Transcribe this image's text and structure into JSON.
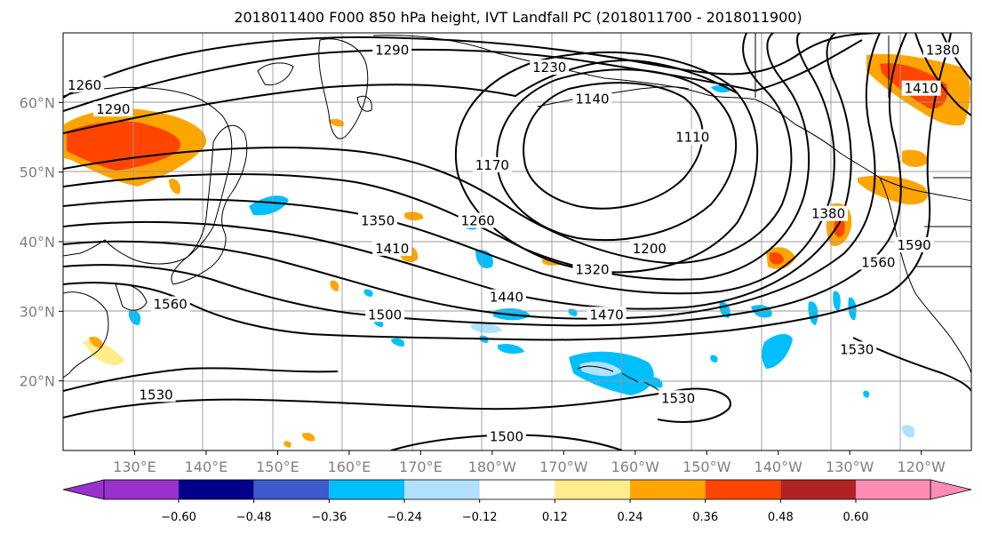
{
  "title": "2018011400 F000 850 hPa height, IVT Landfall PC (2018011700 - 2018011900)",
  "map": {
    "lon_range": [
      120,
      247
    ],
    "lat_range": [
      10,
      70
    ],
    "lon_ticks": [
      "130°E",
      "140°E",
      "150°E",
      "160°E",
      "170°E",
      "180°W",
      "170°W",
      "160°W",
      "150°W",
      "140°W",
      "130°W",
      "120°W"
    ],
    "lat_ticks": [
      "60°N",
      "50°N",
      "40°N",
      "30°N",
      "20°N"
    ],
    "grid": true
  },
  "contour_labels": [
    {
      "text": "1290",
      "lon": 166,
      "lat": 67.5
    },
    {
      "text": "1260",
      "lon": 123,
      "lat": 62.5
    },
    {
      "text": "1290",
      "lon": 127,
      "lat": 59
    },
    {
      "text": "1230",
      "lon": 188,
      "lat": 65
    },
    {
      "text": "1140",
      "lon": 194,
      "lat": 60.5
    },
    {
      "text": "1110",
      "lon": 208,
      "lat": 55
    },
    {
      "text": "1170",
      "lon": 180,
      "lat": 51
    },
    {
      "text": "1260",
      "lon": 178,
      "lat": 43
    },
    {
      "text": "1350",
      "lon": 164,
      "lat": 43
    },
    {
      "text": "1410",
      "lon": 166,
      "lat": 39
    },
    {
      "text": "1200",
      "lon": 202,
      "lat": 39
    },
    {
      "text": "1380",
      "lon": 227,
      "lat": 44
    },
    {
      "text": "1590",
      "lon": 239,
      "lat": 39.5
    },
    {
      "text": "1560",
      "lon": 234,
      "lat": 37
    },
    {
      "text": "1320",
      "lon": 194,
      "lat": 36
    },
    {
      "text": "1440",
      "lon": 182,
      "lat": 32
    },
    {
      "text": "1470",
      "lon": 196,
      "lat": 29.5
    },
    {
      "text": "1500",
      "lon": 165,
      "lat": 29.5
    },
    {
      "text": "1560",
      "lon": 135,
      "lat": 31
    },
    {
      "text": "1530",
      "lon": 231,
      "lat": 24.5
    },
    {
      "text": "1530",
      "lon": 133,
      "lat": 18
    },
    {
      "text": "1530",
      "lon": 206,
      "lat": 17.5
    },
    {
      "text": "1500",
      "lon": 182,
      "lat": 12
    },
    {
      "text": "1380",
      "lon": 243,
      "lat": 67.5
    },
    {
      "text": "1410",
      "lon": 240,
      "lat": 62
    }
  ],
  "colorbar": {
    "ticks": [
      "−0.60",
      "−0.48",
      "−0.36",
      "−0.24",
      "−0.12",
      "0.12",
      "0.24",
      "0.36",
      "0.48",
      "0.60"
    ],
    "colors": [
      "#9932CC",
      "#00008B",
      "#3B5BCC",
      "#00BFFF",
      "#B0E2FF",
      "#FFFFFF",
      "#FFEC8B",
      "#FFA500",
      "#FF4500",
      "#B22222",
      "#FF8CB4"
    ]
  }
}
